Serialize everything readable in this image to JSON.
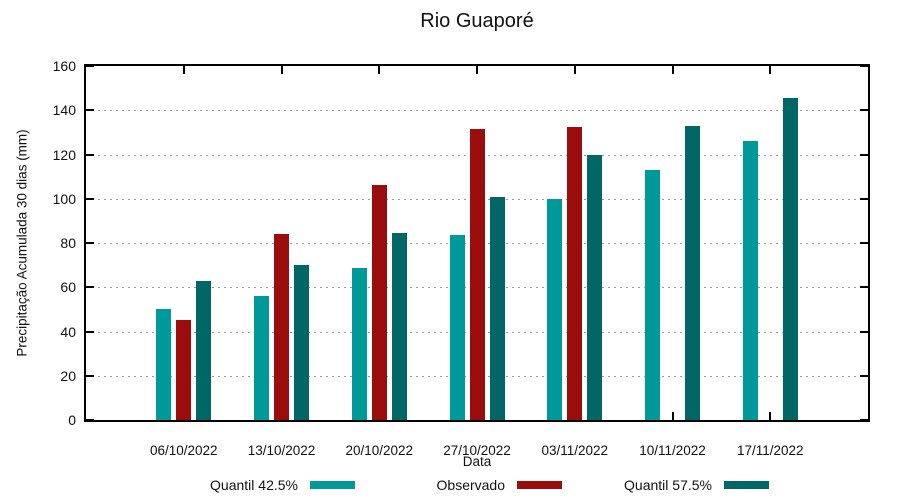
{
  "chart_data": {
    "type": "bar",
    "title": "Rio Guaporé",
    "xlabel": "Data",
    "ylabel": "Precipitação Acumulada 30 dias (mm)",
    "ylim": [
      0,
      160
    ],
    "ytick_step": 20,
    "grid": "horizontal-dotted",
    "legend_position": "bottom-horizontal",
    "categories": [
      "06/10/2022",
      "13/10/2022",
      "20/10/2022",
      "27/10/2022",
      "03/11/2022",
      "10/11/2022",
      "17/11/2022"
    ],
    "series": [
      {
        "name": "Quantil 42.5%",
        "color": "#009999",
        "values": [
          50,
          56,
          68.5,
          83.5,
          100,
          113,
          126
        ]
      },
      {
        "name": "Observado",
        "color": "#9B0D0D",
        "values": [
          45,
          84,
          106,
          131.5,
          132.5,
          null,
          null
        ]
      },
      {
        "name": "Quantil 57.5%",
        "color": "#006666",
        "values": [
          63,
          70,
          84.5,
          101,
          120,
          133,
          145.5
        ]
      }
    ]
  }
}
